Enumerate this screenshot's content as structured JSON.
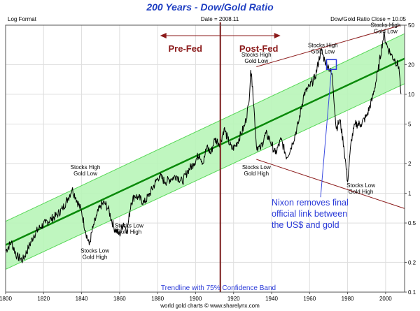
{
  "chart_data": {
    "type": "line",
    "title": "200 Years - Dow/Gold Ratio",
    "header_left": "Log Format",
    "header_center": "Date = 2008.11",
    "header_right": "Dow/Gold Ratio Close = 10.05",
    "footer": "world gold charts © www.sharelynx.com",
    "trendline_label": "Trendline with 75% Confidence Band",
    "y_scale": "log",
    "xlim": [
      1800,
      2010
    ],
    "ylim": [
      0.1,
      50
    ],
    "x_ticks": [
      "1800",
      "1820",
      "1840",
      "1860",
      "1880",
      "1900",
      "1920",
      "1940",
      "1960",
      "1980",
      "2000"
    ],
    "x_tick_values": [
      1800,
      1820,
      1840,
      1860,
      1880,
      1900,
      1920,
      1940,
      1960,
      1980,
      2000
    ],
    "y_ticks": [
      "0.1",
      "0.2",
      "0.5",
      "1",
      "2",
      "5",
      "10",
      "20",
      "50"
    ],
    "y_tick_values": [
      0.1,
      0.2,
      0.5,
      1,
      2,
      5,
      10,
      20,
      50
    ],
    "grid": true,
    "colors": {
      "title": "#1f3fc2",
      "series": "#000000",
      "trendline": "#0a8a0a",
      "band_fill": "#b8f5b8",
      "band_edge": "#58d858",
      "divider": "#7a1a1a",
      "channel": "#8b1a1a",
      "arrow": "#8b1a1a",
      "era_label": "#8b1a1a",
      "nixon_text": "#2a3ad8",
      "nixon_line": "#3a4ae0",
      "nixon_box": "#2a3ad8",
      "grid": "#dedede",
      "annotation": "#000000"
    },
    "series": [
      {
        "x": [
          1800,
          1803,
          1806,
          1809,
          1812,
          1815,
          1818,
          1821,
          1824,
          1827,
          1830,
          1833,
          1835,
          1837,
          1840,
          1842,
          1844,
          1846,
          1848,
          1850,
          1852,
          1854,
          1857,
          1860,
          1862,
          1864,
          1866,
          1868,
          1870,
          1873,
          1876,
          1879,
          1881,
          1884,
          1887,
          1890,
          1893,
          1896,
          1899,
          1902,
          1904,
          1906,
          1908,
          1910,
          1913,
          1915,
          1917,
          1919,
          1921,
          1924,
          1926,
          1928,
          1929,
          1930,
          1932,
          1934,
          1937,
          1939,
          1942,
          1945,
          1948,
          1951,
          1954,
          1957,
          1960,
          1963,
          1966,
          1968,
          1970,
          1972,
          1974,
          1976,
          1978,
          1980,
          1982,
          1984,
          1987,
          1990,
          1993,
          1996,
          1999,
          2001,
          2003,
          2005,
          2007,
          2008.1
        ],
        "y": [
          0.26,
          0.32,
          0.23,
          0.21,
          0.28,
          0.38,
          0.45,
          0.5,
          0.55,
          0.6,
          0.7,
          0.9,
          1.1,
          0.9,
          0.65,
          0.42,
          0.3,
          0.45,
          0.6,
          0.75,
          0.8,
          0.7,
          0.45,
          0.38,
          0.5,
          0.42,
          0.8,
          0.95,
          0.9,
          0.8,
          1.0,
          1.3,
          1.5,
          1.3,
          1.4,
          1.5,
          1.3,
          1.7,
          2.0,
          2.5,
          2.0,
          3.0,
          2.5,
          3.5,
          3.2,
          4.5,
          3.5,
          2.8,
          3.0,
          4.0,
          5.0,
          8.0,
          17.5,
          12.0,
          3.0,
          2.8,
          4.0,
          3.5,
          2.5,
          3.5,
          2.3,
          3.2,
          5.0,
          10.0,
          12.0,
          15.0,
          28.0,
          22.0,
          19.0,
          15.0,
          4.5,
          5.5,
          3.0,
          1.3,
          3.5,
          5.0,
          5.0,
          6.0,
          9.0,
          17.0,
          40.0,
          30.0,
          25.0,
          22.0,
          19.0,
          10.05
        ]
      }
    ],
    "trendline": {
      "x": [
        1800,
        2010
      ],
      "y": [
        0.3,
        23.0
      ]
    },
    "confidence_band": {
      "x": [
        1800,
        2010
      ],
      "upper": [
        0.52,
        41.0
      ],
      "lower": [
        0.17,
        12.8
      ]
    },
    "channel_lines": [
      {
        "x": [
          1932,
          2008.1
        ],
        "y": [
          19.0,
          50.0
        ]
      },
      {
        "x": [
          1932,
          2010
        ],
        "y": [
          2.2,
          0.7
        ]
      }
    ],
    "divider": {
      "x": 1913
    },
    "era_labels": {
      "left": "Pre-Fed",
      "right": "Post-Fed"
    },
    "annotations": [
      {
        "lines": [
          "Stocks High",
          "Gold Low"
        ],
        "x": 1842,
        "y": 1.75
      },
      {
        "lines": [
          "Stocks Low",
          "Gold High"
        ],
        "x": 1847,
        "y": 0.25
      },
      {
        "lines": [
          "Stocks Low",
          "Gold High"
        ],
        "x": 1865,
        "y": 0.45
      },
      {
        "lines": [
          "Stocks High",
          "Gold Low"
        ],
        "x": 1932,
        "y": 24
      },
      {
        "lines": [
          "Stocks Low",
          "Gold High"
        ],
        "x": 1932,
        "y": 1.75
      },
      {
        "lines": [
          "Stocks High",
          "Gold Low"
        ],
        "x": 1967,
        "y": 30
      },
      {
        "lines": [
          "Stocks Low",
          "Gold High"
        ],
        "x": 1987,
        "y": 1.15
      },
      {
        "lines": [
          "Stocks High",
          "Gold Low"
        ],
        "x": 2000,
        "y": 48
      }
    ],
    "nixon": {
      "lines": [
        "Nixon removes final",
        "official link between",
        "the US$ and gold"
      ],
      "box_x": 1971.5,
      "box_y": 20,
      "text_x": 1940,
      "text_y": 0.75
    }
  }
}
